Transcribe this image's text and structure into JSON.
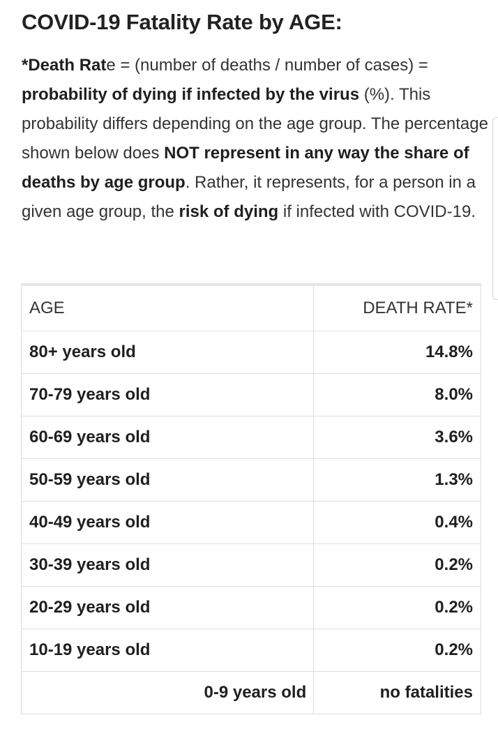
{
  "title": "COVID-19 Fatality Rate by AGE:",
  "intro": {
    "p1": "*Death Rat",
    "p2": "e = (number of deaths / number of cases) = ",
    "p3": "probability of dying if infected by the virus",
    "p4": " (%). This probability differs depending on the age group. The percentage shown below does ",
    "p5": "NOT represent in any way the share of deaths by age group",
    "p6": ". Rather, it represents, for a person in a given age group, the ",
    "p7": "risk of dying",
    "p8": " if infected with COVID-19."
  },
  "table": {
    "headers": {
      "age": "AGE",
      "rate": "DEATH RATE*"
    },
    "rows": [
      {
        "age": "80+ years old",
        "rate": "14.8%"
      },
      {
        "age": "70-79 years old",
        "rate": "8.0%"
      },
      {
        "age": "60-69 years old",
        "rate": "3.6%"
      },
      {
        "age": "50-59 years old",
        "rate": "1.3%"
      },
      {
        "age": "40-49 years old",
        "rate": "0.4%"
      },
      {
        "age": "30-39 years old",
        "rate": "0.2%"
      },
      {
        "age": "20-29 years old",
        "rate": "0.2%"
      },
      {
        "age": "10-19 years old",
        "rate": "0.2%"
      },
      {
        "age": "0-9 years old",
        "rate": "no fatalities"
      }
    ]
  }
}
